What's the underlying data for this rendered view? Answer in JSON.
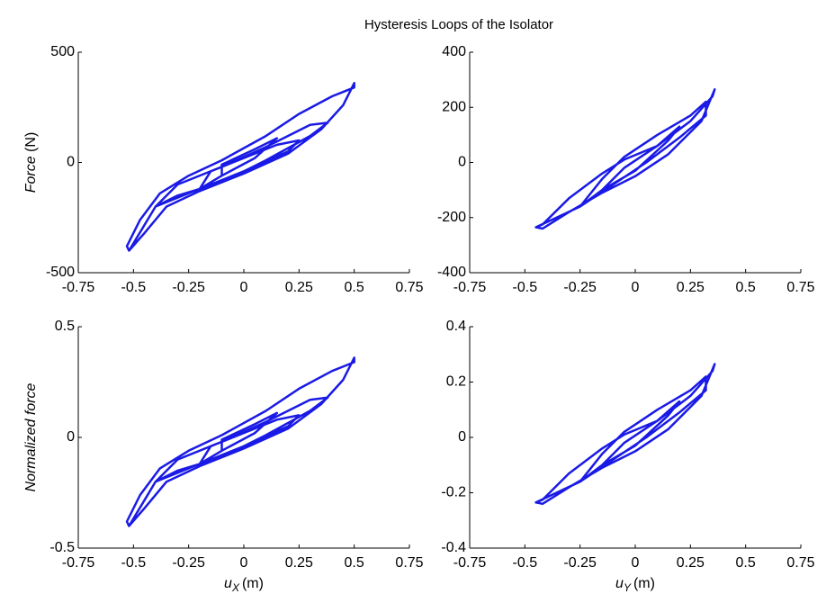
{
  "title": "Hysteresis Loops of the Isolator",
  "chart_data": [
    {
      "type": "line",
      "color": "#1a1ae6",
      "ylabel": "Force",
      "ylabel_unit": "(N)",
      "xlim": [
        -0.75,
        0.75
      ],
      "xticks": [
        -0.75,
        -0.5,
        -0.25,
        0,
        0.25,
        0.5,
        0.75
      ],
      "ylim": [
        -500,
        500
      ],
      "yticks": [
        -500,
        0,
        500
      ],
      "x": [
        -0.52,
        -0.45,
        -0.35,
        -0.2,
        0,
        0.2,
        0.35,
        0.45,
        0.5,
        0.5,
        0.4,
        0.25,
        0.1,
        -0.1,
        -0.25,
        -0.38,
        -0.47,
        -0.53,
        -0.52,
        -0.4,
        -0.3,
        -0.1,
        0.1,
        0.3,
        0.38,
        0.3,
        0.1,
        -0.1,
        -0.3,
        -0.4,
        -0.2,
        0,
        0.2,
        0.25,
        0.15,
        0,
        -0.15,
        -0.2,
        -0.1,
        0.05,
        0.15,
        0.05,
        -0.1,
        -0.1
      ],
      "values": [
        -400,
        -320,
        -200,
        -130,
        -50,
        40,
        150,
        260,
        360,
        340,
        300,
        220,
        120,
        10,
        -60,
        -140,
        -260,
        -380,
        -400,
        -200,
        -150,
        -90,
        10,
        120,
        180,
        170,
        70,
        -20,
        -100,
        -200,
        -120,
        -40,
        50,
        100,
        80,
        20,
        -40,
        -120,
        -60,
        20,
        110,
        60,
        -10,
        -60
      ]
    },
    {
      "type": "line",
      "color": "#1a1ae6",
      "xlim": [
        -0.75,
        0.75
      ],
      "xticks": [
        -0.75,
        -0.5,
        -0.25,
        0,
        0.25,
        0.5,
        0.75
      ],
      "ylim": [
        -400,
        400
      ],
      "yticks": [
        -400,
        -200,
        0,
        200,
        400
      ],
      "x": [
        -0.45,
        -0.42,
        -0.3,
        -0.15,
        0,
        0.15,
        0.3,
        0.36,
        0.35,
        0.25,
        0.1,
        -0.05,
        -0.15,
        -0.3,
        -0.42,
        -0.45,
        -0.25,
        -0.15,
        -0.05,
        0.1,
        0.25,
        0.32,
        0.32,
        0.2,
        0.05,
        -0.1,
        -0.25,
        -0.15,
        0,
        0.15,
        0.2,
        0.1,
        -0.05,
        -0.15
      ],
      "values": [
        -235,
        -240,
        -180,
        -110,
        -50,
        30,
        150,
        265,
        240,
        150,
        60,
        10,
        -40,
        -130,
        -225,
        -235,
        -160,
        -60,
        20,
        100,
        170,
        220,
        170,
        90,
        0,
        -80,
        -160,
        -100,
        -30,
        80,
        130,
        60,
        -20,
        -100
      ]
    },
    {
      "type": "line",
      "color": "#1a1ae6",
      "ylabel": "Normalized force",
      "xlabel_symbol": "u",
      "xlabel_subscript": "X",
      "xlabel_unit": "(m)",
      "xlim": [
        -0.75,
        0.75
      ],
      "xticks": [
        -0.75,
        -0.5,
        -0.25,
        0,
        0.25,
        0.5,
        0.75
      ],
      "ylim": [
        -0.5,
        0.5
      ],
      "yticks": [
        -0.5,
        0,
        0.5
      ],
      "x": [
        -0.52,
        -0.45,
        -0.35,
        -0.2,
        0,
        0.2,
        0.35,
        0.45,
        0.5,
        0.5,
        0.4,
        0.25,
        0.1,
        -0.1,
        -0.25,
        -0.38,
        -0.47,
        -0.53,
        -0.52,
        -0.4,
        -0.3,
        -0.1,
        0.1,
        0.3,
        0.38,
        0.3,
        0.1,
        -0.1,
        -0.3,
        -0.4,
        -0.2,
        0,
        0.2,
        0.25,
        0.15,
        0,
        -0.15,
        -0.2,
        -0.1,
        0.05,
        0.15,
        0.05,
        -0.1,
        -0.1
      ],
      "values": [
        -0.4,
        -0.32,
        -0.2,
        -0.13,
        -0.05,
        0.04,
        0.15,
        0.26,
        0.36,
        0.34,
        0.3,
        0.22,
        0.12,
        0.01,
        -0.06,
        -0.14,
        -0.26,
        -0.38,
        -0.4,
        -0.2,
        -0.15,
        -0.09,
        0.01,
        0.12,
        0.18,
        0.17,
        0.07,
        -0.02,
        -0.1,
        -0.2,
        -0.12,
        -0.04,
        0.05,
        0.1,
        0.08,
        0.02,
        -0.04,
        -0.12,
        -0.06,
        0.02,
        0.11,
        0.06,
        -0.01,
        -0.06
      ]
    },
    {
      "type": "line",
      "color": "#1a1ae6",
      "xlabel_symbol": "u",
      "xlabel_subscript": "Y",
      "xlabel_unit": "(m)",
      "xlim": [
        -0.75,
        0.75
      ],
      "xticks": [
        -0.75,
        -0.5,
        -0.25,
        0,
        0.25,
        0.5,
        0.75
      ],
      "ylim": [
        -0.4,
        0.4
      ],
      "yticks": [
        -0.4,
        -0.2,
        0,
        0.2,
        0.4
      ],
      "x": [
        -0.45,
        -0.42,
        -0.3,
        -0.15,
        0,
        0.15,
        0.3,
        0.36,
        0.35,
        0.25,
        0.1,
        -0.05,
        -0.15,
        -0.3,
        -0.42,
        -0.45,
        -0.25,
        -0.15,
        -0.05,
        0.1,
        0.25,
        0.32,
        0.32,
        0.2,
        0.05,
        -0.1,
        -0.25,
        -0.15,
        0,
        0.15,
        0.2,
        0.1,
        -0.05,
        -0.15
      ],
      "values": [
        -0.235,
        -0.24,
        -0.18,
        -0.11,
        -0.05,
        0.03,
        0.15,
        0.265,
        0.24,
        0.15,
        0.06,
        0.01,
        -0.04,
        -0.13,
        -0.225,
        -0.235,
        -0.16,
        -0.06,
        0.02,
        0.1,
        0.17,
        0.22,
        0.17,
        0.09,
        0,
        -0.08,
        -0.16,
        -0.1,
        -0.03,
        0.08,
        0.13,
        0.06,
        -0.02,
        -0.1
      ]
    }
  ]
}
